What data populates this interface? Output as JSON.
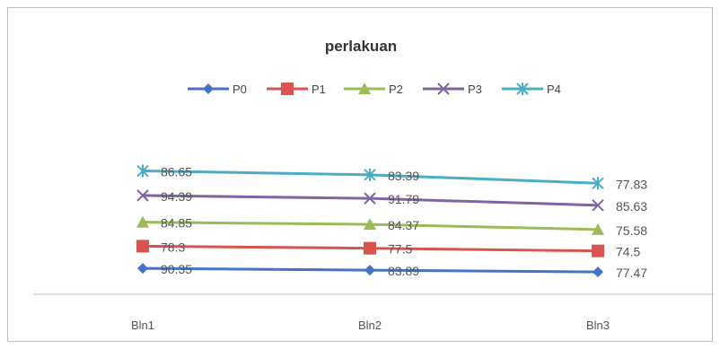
{
  "chart_data": {
    "type": "line",
    "title": "perlakuan",
    "categories": [
      "Bln1",
      "Bln2",
      "Bln3"
    ],
    "legend_position": "top",
    "grid": false,
    "series": [
      {
        "name": "P0",
        "color": "#4472C4",
        "marker": "diamond",
        "values": [
          90.35,
          83.89,
          77.47
        ],
        "labels": [
          "90.35",
          "83.89",
          "77.47"
        ]
      },
      {
        "name": "P1",
        "color": "#D9534F",
        "marker": "square",
        "values": [
          78.3,
          77.5,
          74.5
        ],
        "labels": [
          "78.3",
          "77.5",
          "74.5"
        ]
      },
      {
        "name": "P2",
        "color": "#9BBB59",
        "marker": "triangle",
        "values": [
          84.85,
          84.37,
          75.58
        ],
        "labels": [
          "84.85",
          "84.37",
          "75.58"
        ]
      },
      {
        "name": "P3",
        "color": "#8064A2",
        "marker": "x",
        "values": [
          94.39,
          91.79,
          85.63
        ],
        "labels": [
          "94.39",
          "91.79",
          "85.63"
        ]
      },
      {
        "name": "P4",
        "color": "#4BACC6",
        "marker": "star",
        "values": [
          86.65,
          83.39,
          77.83
        ],
        "labels": [
          "86.65",
          "83.39",
          "77.83"
        ]
      }
    ]
  }
}
